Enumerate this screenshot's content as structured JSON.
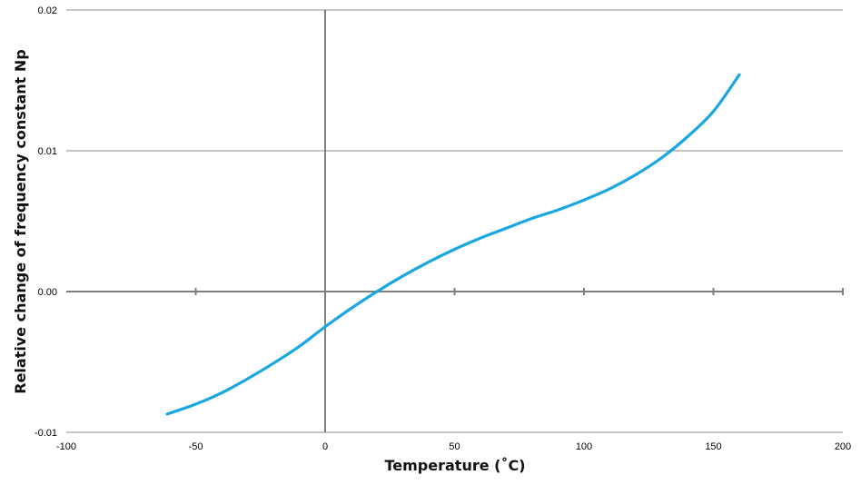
{
  "chart_data": {
    "type": "line",
    "title": "",
    "xlabel": "Temperature (˚C)",
    "ylabel": "Relative change of frequency constant Np",
    "xlim": [
      -100,
      200
    ],
    "ylim": [
      -0.01,
      0.02
    ],
    "x_ticks": [
      "-100",
      "-50",
      "0",
      "50",
      "100",
      "150",
      "200"
    ],
    "y_ticks": [
      "-0.01",
      "0.00",
      "0.01",
      "0.02"
    ],
    "grid": true,
    "legend": "none",
    "series": [
      {
        "color": "#1aa7e1",
        "x": [
          -61,
          -50,
          -40,
          -30,
          -20,
          -10,
          0,
          10,
          20,
          30,
          40,
          50,
          60,
          70,
          80,
          90,
          100,
          110,
          120,
          130,
          140,
          150,
          160
        ],
        "y": [
          -0.0087,
          -0.008,
          -0.0072,
          -0.0062,
          -0.0051,
          -0.0039,
          -0.0025,
          -0.0012,
          0.0,
          0.0011,
          0.0021,
          0.003,
          0.0038,
          0.0045,
          0.0052,
          0.0058,
          0.0065,
          0.0073,
          0.0083,
          0.0095,
          0.011,
          0.0128,
          0.0154
        ]
      }
    ]
  }
}
